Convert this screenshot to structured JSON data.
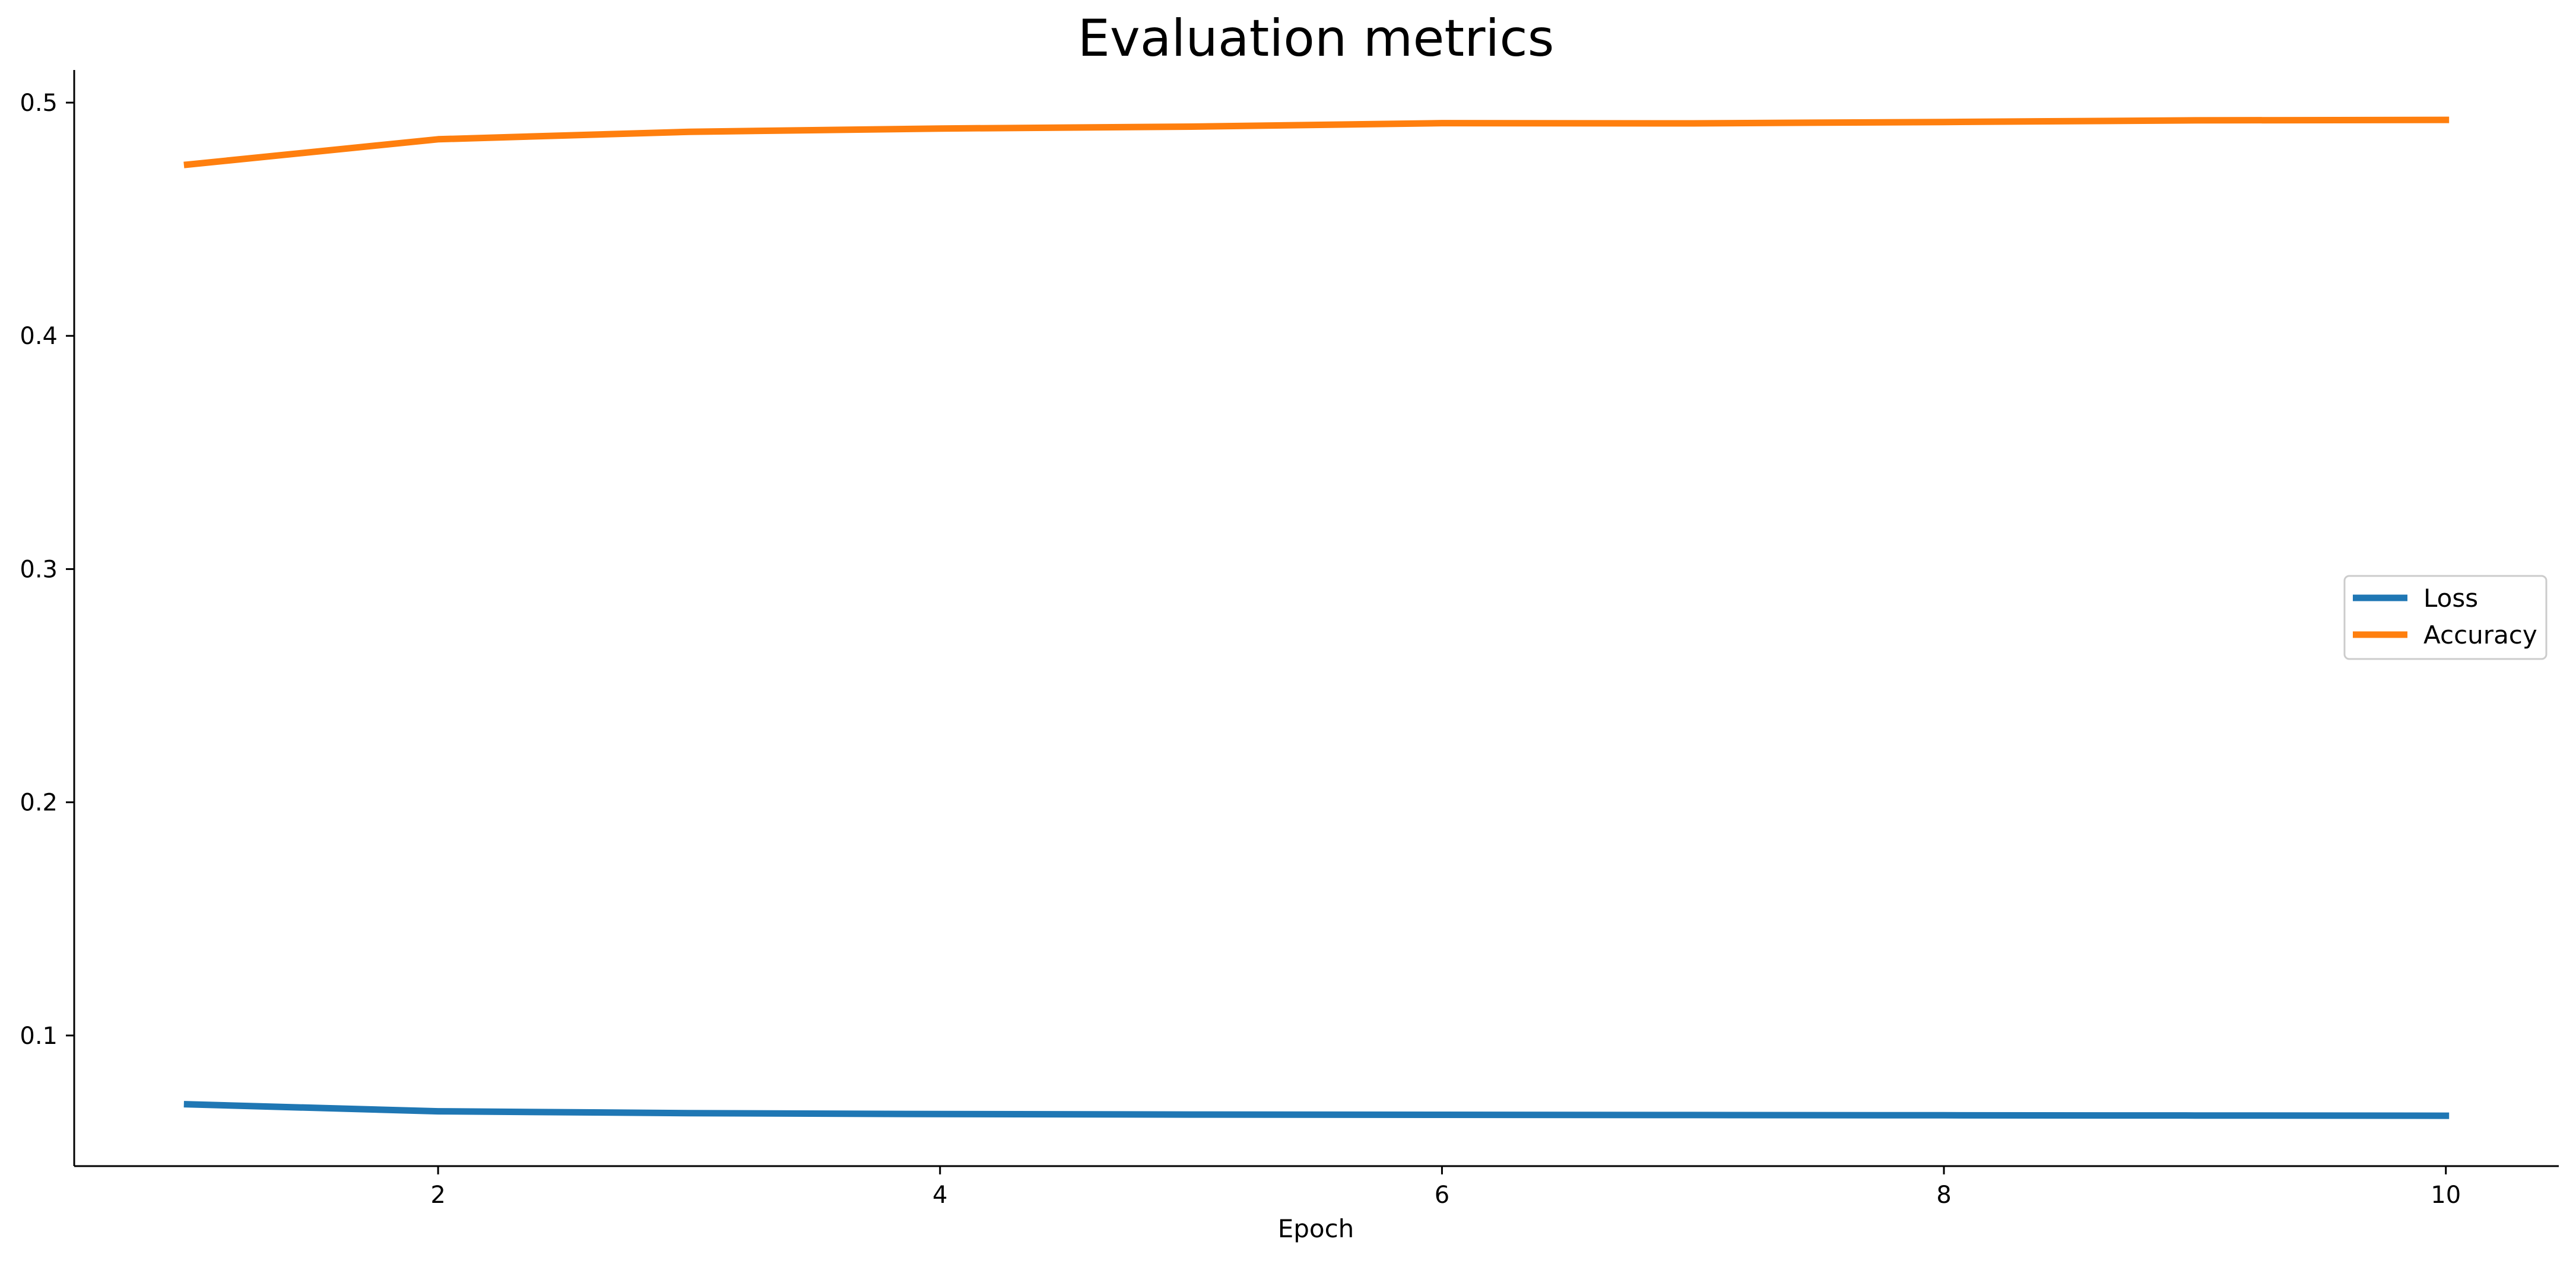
{
  "chart_data": {
    "type": "line",
    "title": "Evaluation metrics",
    "xlabel": "Epoch",
    "ylabel": "",
    "x": [
      1,
      2,
      3,
      4,
      5,
      6,
      7,
      8,
      9,
      10
    ],
    "xticks": [
      2,
      4,
      6,
      8,
      10
    ],
    "yticks": [
      0.1,
      0.2,
      0.3,
      0.4,
      0.5
    ],
    "xlim": [
      0.55,
      10.45
    ],
    "ylim": [
      0.044,
      0.514
    ],
    "grid": false,
    "legend_position": "center-right",
    "series": [
      {
        "name": "Loss",
        "color": "#1f77b4",
        "values": [
          0.0705,
          0.0675,
          0.0667,
          0.0663,
          0.0661,
          0.066,
          0.0659,
          0.0658,
          0.0657,
          0.0656
        ]
      },
      {
        "name": "Accuracy",
        "color": "#ff7f0e",
        "values": [
          0.4734,
          0.4843,
          0.4875,
          0.4889,
          0.4897,
          0.4912,
          0.4911,
          0.4917,
          0.4924,
          0.4926
        ]
      }
    ]
  }
}
